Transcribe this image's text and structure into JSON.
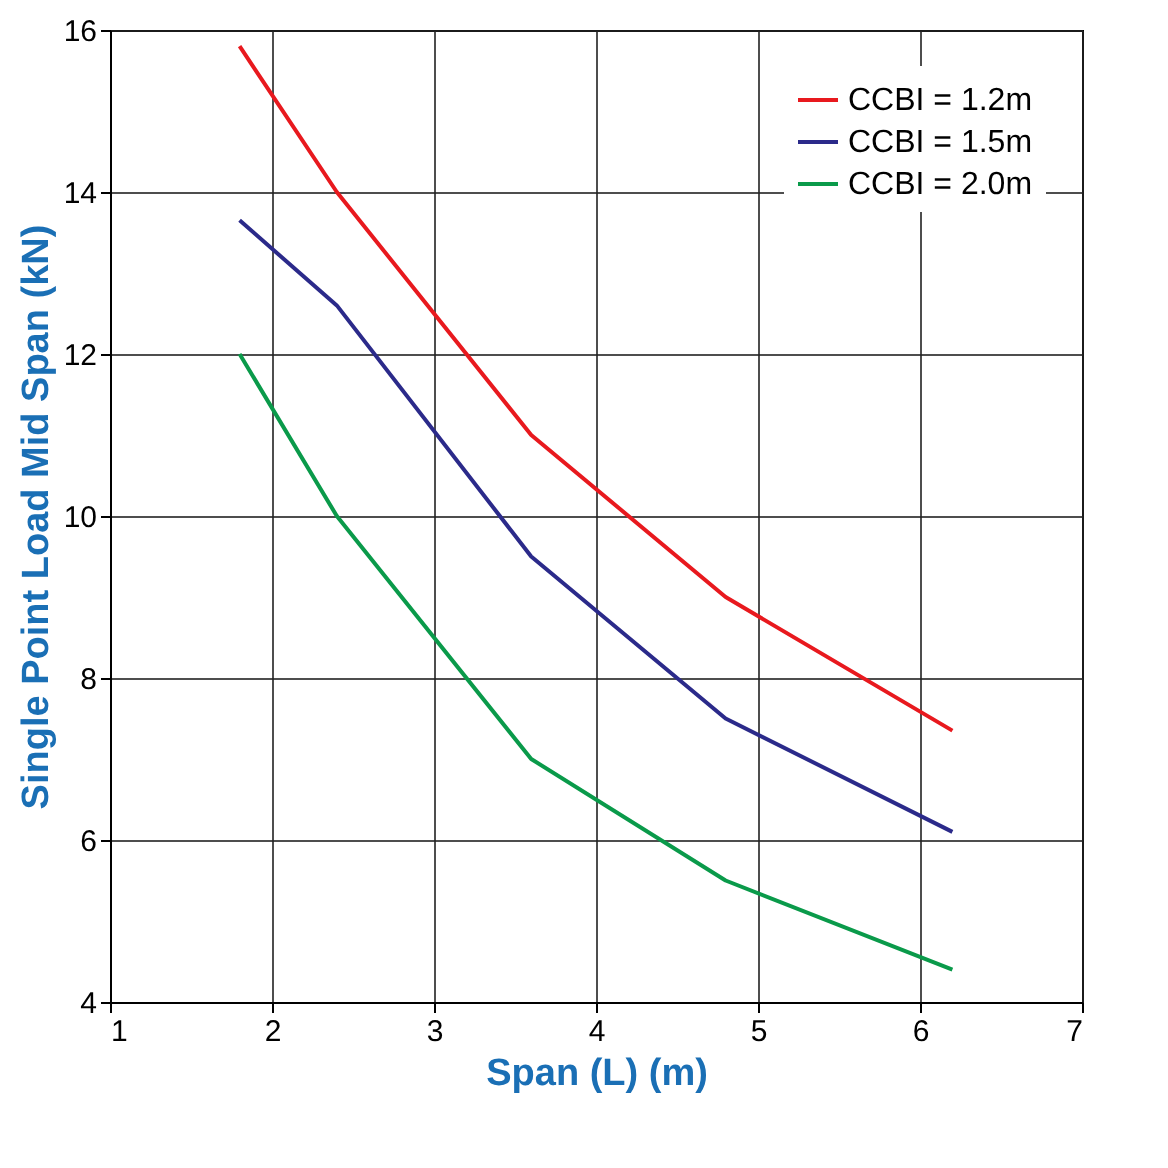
{
  "chart_data": {
    "type": "line",
    "xlabel": "Span (L) (m)",
    "ylabel": "Single Point Load Mid Span (kN)",
    "series": [
      {
        "name": "CCBI = 1.2m",
        "color": "#e8191e",
        "x": [
          1.8,
          2.4,
          3.6,
          4.8,
          6.2
        ],
        "values": [
          15.8,
          14.0,
          11.0,
          9.0,
          7.35
        ]
      },
      {
        "name": "CCBI = 1.5m",
        "color": "#2b2a8a",
        "x": [
          1.8,
          2.4,
          3.6,
          4.8,
          6.2
        ],
        "values": [
          13.65,
          12.6,
          9.5,
          7.5,
          6.1
        ]
      },
      {
        "name": "CCBI = 2.0m",
        "color": "#0a9a4a",
        "x": [
          1.8,
          2.4,
          3.6,
          4.8,
          6.2
        ],
        "values": [
          12.0,
          10.0,
          7.0,
          5.5,
          4.4
        ]
      }
    ],
    "xlim": [
      1,
      7
    ],
    "xticks": [
      1,
      2,
      3,
      4,
      5,
      6,
      7
    ],
    "ylim": [
      4,
      16
    ],
    "yticks": [
      4,
      6,
      8,
      10,
      12,
      14,
      16
    ],
    "grid": true,
    "legend": "top right",
    "marker": "none",
    "line_style": "solid"
  }
}
